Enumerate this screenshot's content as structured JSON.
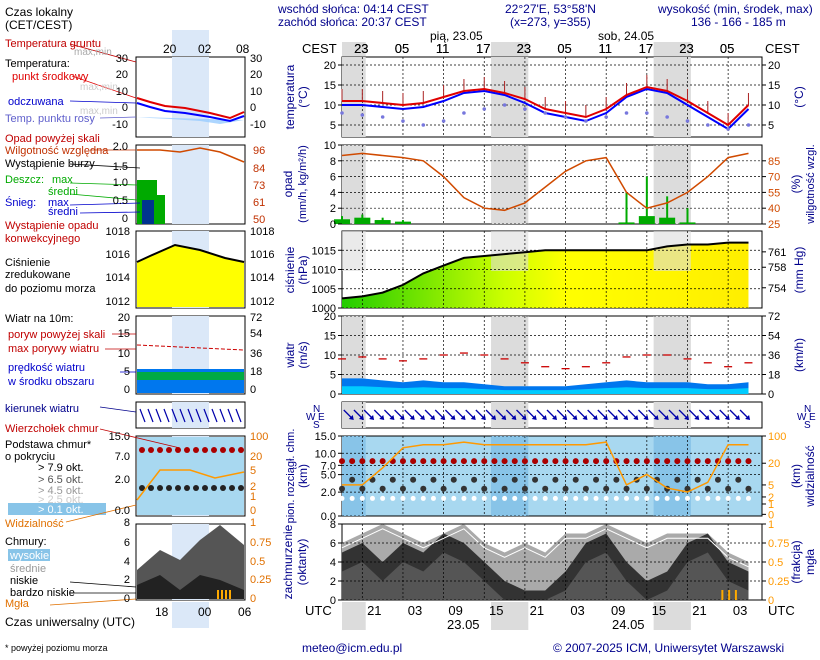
{
  "header": {
    "sunrise": "wschód słońca: 04:14 CEST",
    "sunset": "zachód słońca: 20:37 CEST",
    "coords": "22°27'E, 53°58'N",
    "grid": "(x=273, y=355)",
    "elev_title": "wysokość (min, środek, max)",
    "elev_values": "136 - 166 - 185 m",
    "day1": "pią, 23.05",
    "day2": "sob, 24.05",
    "cest": "CEST",
    "utc": "UTC",
    "date1": "23.05",
    "date2": "24.05"
  },
  "legend": {
    "local_time": "Czas lokalny",
    "local_time2": "(CET/CEST)",
    "soil": "Temperatura gruntu",
    "maxmin": "max,min",
    "temp": "Temperatura:",
    "mid": "punkt środkowy",
    "maxmin2": "max,min",
    "felt": "odczuwana",
    "maxmin3": "max,min",
    "dew": "Temp. punktu rosy",
    "rain_above": "Opad powyżej skali",
    "humidity": "Wilgotność względna",
    "storm": "Wystąpienie burzy",
    "rain": "Deszcz:",
    "rain_max": "max",
    "rain_mid": "średni",
    "snow": "Śnieg:",
    "snow_max": "max",
    "snow_mid": "średni",
    "conv": "Wystąpienie opadu",
    "conv2": "konwekcyjnego",
    "pressure1": "Ciśnienie",
    "pressure2": "zredukowane",
    "pressure3": "do poziomu morza",
    "wind": "Wiatr na 10m:",
    "gust_above": "poryw powyżej skali",
    "gust_max": "max porywy wiatru",
    "wind_speed": "prędkość wiatru",
    "wind_area": "w środku obszaru",
    "wind_dir": "kierunek wiatru",
    "cloud_top": "Wierzchołek chmur",
    "cloud_base": "Podstawa chmur*",
    "cloud_base2": "o pokryciu",
    "okt79": "> 7.9 okt.",
    "okt65": "> 6.5 okt.",
    "okt45": "> 4.5 okt.",
    "okt25": "> 2.5 okt.",
    "okt01": "> 0.1 okt.",
    "visibility": "Widzialność",
    "clouds": "Chmury:",
    "high": "wysokie",
    "medium": "średnie",
    "low": "niskie",
    "vlow": "bardzo niskie",
    "fog": "Mgła",
    "utc_label": "Czas uniwersalny (UTC)",
    "footnote": "* powyżej poziomu morza"
  },
  "axis_titles": {
    "temp": "temperatura",
    "temp_unit": "(°C)",
    "rain": "opad",
    "rain_unit": "(mm/h, kg/m²/h)",
    "hum": "wilgotność wzgl.",
    "hum_unit": "(%)",
    "pres": "ciśnienie",
    "pres_unit": "(hPa)",
    "pres_unit2": "(mm Hg)",
    "wind": "wiatr",
    "wind_unit": "(m/s)",
    "wind_unit2": "(km/h)",
    "cb1": "pion. rozciągł. chm.",
    "cb_unit": "(km)",
    "vis": "widzialność",
    "vis_unit": "(km)",
    "cc1": "zachmurzenie",
    "cc_unit": "(oktanty)",
    "fog": "mgła",
    "fog_unit": "(frakcja)",
    "wind_dir_n": "N",
    "wind_dir_w": "W",
    "wind_dir_e": "E",
    "wind_dir_s": "S"
  },
  "footer": {
    "email": "meteo@icm.edu.pl",
    "copyright": "© 2007-2025 ICM, Uniwersytet Warszawski"
  },
  "colors": {
    "temp": "#e00000",
    "felt": "#0000ff",
    "dew": "#7777dd",
    "humidity": "#d04a00",
    "rain": "#00aa00",
    "pressure_fill": "#ffff00",
    "wind_fill": "#0077ee",
    "cloud_top": "#aa0000",
    "visibility": "#ff9900",
    "night": "#dcdcdc"
  },
  "chart_data": [
    {
      "type": "line",
      "name_key": "temperature",
      "x_labels_cest": [
        "23",
        "05",
        "11",
        "17",
        "23",
        "05",
        "11",
        "17",
        "23",
        "05"
      ],
      "x_labels_utc": [
        "21",
        "03",
        "09",
        "15",
        "21",
        "03",
        "09",
        "15",
        "21",
        "03"
      ],
      "hours_utc": [
        18,
        21,
        24,
        27,
        30,
        33,
        36,
        39,
        42,
        45,
        48,
        51,
        54,
        57,
        60,
        63,
        66,
        69,
        72,
        75,
        78
      ],
      "ylim": [
        2,
        22
      ],
      "yticks": [
        5,
        10,
        15,
        20
      ],
      "series": [
        {
          "name": "punkt środkowy",
          "values": [
            11,
            11,
            10.5,
            10,
            10.5,
            12,
            13.5,
            14,
            13,
            11.5,
            9,
            8,
            7,
            9,
            12.5,
            14.5,
            13.5,
            11,
            8,
            5,
            10
          ]
        },
        {
          "name": "odczuwana",
          "values": [
            10,
            10,
            9.5,
            9,
            9.5,
            11,
            13,
            13.5,
            12.5,
            10.5,
            8,
            7,
            6,
            8,
            12,
            14,
            13,
            10,
            7,
            4,
            9
          ]
        },
        {
          "name": "Temp. punktu rosy",
          "values": [
            8,
            7.5,
            7,
            6,
            5,
            6,
            8,
            9,
            10,
            9,
            8,
            7,
            6,
            7,
            8,
            8,
            7,
            6,
            5,
            4,
            5
          ]
        }
      ]
    },
    {
      "type": "bar",
      "name_key": "rain_humidity",
      "ylim": [
        0,
        10
      ],
      "yticks": [
        0,
        2,
        4,
        6,
        8,
        10
      ],
      "ylim_right": [
        25,
        100
      ],
      "yticks_right": [
        25,
        40,
        55,
        70,
        85
      ],
      "humidity": [
        90,
        92,
        90,
        88,
        85,
        70,
        50,
        40,
        38,
        45,
        60,
        75,
        85,
        88,
        55,
        40,
        45,
        55,
        70,
        88,
        92
      ],
      "rain_mid": [
        0.6,
        0.8,
        0.5,
        0.3,
        0,
        0,
        0,
        0,
        0,
        0,
        0,
        0,
        0,
        0,
        0.2,
        1,
        0.8,
        0.2,
        0,
        0,
        0
      ],
      "rain_max": [
        1,
        1.2,
        0.8,
        0.5,
        0,
        0,
        0,
        0,
        0,
        0,
        0,
        0,
        0,
        0,
        4,
        6,
        3.5,
        2,
        0,
        0,
        0
      ]
    },
    {
      "type": "area",
      "name_key": "pressure",
      "ylim": [
        1000,
        1020
      ],
      "yticks": [
        1000,
        1005,
        1010,
        1015
      ],
      "yticks_right": [
        754,
        758,
        761
      ],
      "values": [
        1002.5,
        1003,
        1004,
        1006,
        1009,
        1011,
        1013,
        1013.5,
        1014,
        1014.5,
        1015,
        1015,
        1015,
        1015,
        1015,
        1015,
        1016,
        1016.5,
        1016.5,
        1017,
        1017
      ]
    },
    {
      "type": "area",
      "name_key": "wind",
      "ylim": [
        0,
        20
      ],
      "yticks": [
        0,
        5,
        10,
        15,
        20
      ],
      "yticks_right": [
        0,
        18,
        36,
        54,
        72
      ],
      "speed": [
        4,
        4,
        3.5,
        3,
        3.5,
        3,
        3,
        2.5,
        2,
        2,
        2,
        2,
        2.5,
        3,
        3.5,
        3,
        3,
        3,
        2.5,
        2.5,
        3
      ],
      "gust": [
        9,
        9.5,
        9,
        8.5,
        9,
        10,
        10.5,
        10,
        9,
        8,
        7,
        6.5,
        7,
        8,
        9.5,
        10,
        10,
        9,
        8,
        7,
        8
      ]
    },
    {
      "type": "line",
      "name_key": "cloud_visibility",
      "ylim": [
        0,
        15
      ],
      "yticks": [
        0,
        2,
        5,
        7,
        10,
        15
      ],
      "yticks_labels": [
        "0.0",
        "2.0",
        "5.0",
        "7.0",
        "10.0",
        "15.0"
      ],
      "yticks_right": [
        0,
        1,
        2,
        5,
        20,
        100
      ],
      "cloud_top": [
        8,
        8,
        8,
        8,
        8,
        8,
        8,
        8,
        8,
        8,
        8,
        8,
        8,
        7.5,
        7.5,
        7,
        6,
        5.5,
        7,
        7.5,
        7
      ],
      "visibility_km": [
        5,
        5,
        15,
        50,
        60,
        60,
        70,
        60,
        60,
        60,
        60,
        60,
        60,
        70,
        5,
        10,
        4,
        3,
        6,
        60,
        60
      ]
    },
    {
      "type": "area",
      "name_key": "cloud_cover",
      "ylim": [
        0,
        8
      ],
      "yticks": [
        0,
        2,
        4,
        6,
        8
      ],
      "yticks_right": [
        "0",
        "0.25",
        "0.5",
        "0.75",
        "1"
      ],
      "low": [
        5,
        6,
        4,
        6,
        5,
        7,
        6,
        4,
        2,
        1,
        1,
        3,
        6,
        7,
        4,
        2,
        3,
        6,
        7,
        4,
        3
      ],
      "high": [
        6,
        7,
        8,
        7,
        6,
        7,
        8,
        6,
        5,
        6,
        5,
        7,
        7,
        8,
        7,
        6,
        7,
        7,
        7,
        5,
        4
      ]
    }
  ]
}
